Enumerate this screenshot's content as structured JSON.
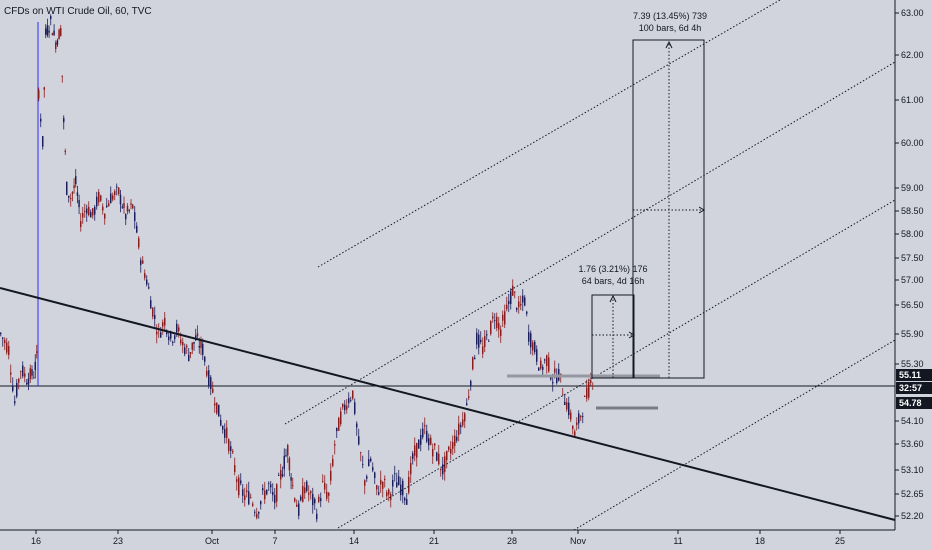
{
  "chart_data": {
    "type": "candlestick",
    "title": "CFDs on WTI Crude Oil, 60, TVC",
    "y_ticks": [
      63.0,
      62.0,
      61.0,
      60.0,
      59.0,
      58.5,
      58.0,
      57.5,
      57.0,
      56.5,
      55.9,
      55.3,
      54.1,
      53.6,
      53.1,
      52.65,
      52.2
    ],
    "y_tick_labels": [
      "63.00",
      "62.00",
      "61.00",
      "60.00",
      "59.00",
      "58.50",
      "58.00",
      "57.50",
      "57.00",
      "56.50",
      "55.90",
      "55.30",
      "54.10",
      "53.60",
      "53.10",
      "52.65",
      "52.20"
    ],
    "x_ticks": [
      "16",
      "23",
      "Oct",
      "7",
      "14",
      "21",
      "28",
      "Nov",
      "11",
      "18",
      "25"
    ],
    "price_labels": [
      {
        "text": "55.11",
        "value": 55.11,
        "color": "#131722"
      },
      {
        "text": "32:57",
        "value": 54.9,
        "color": "#131722"
      },
      {
        "text": "54.78",
        "value": 54.78,
        "color": "#131722"
      }
    ],
    "measure_annotations": [
      {
        "line1": "7.39 (13.45%) 739",
        "line2": "100 bars, 6d 4h"
      },
      {
        "line1": "1.76 (3.21%) 176",
        "line2": "64 bars, 4d 16h"
      }
    ],
    "price_path": [
      [
        0,
        55.9
      ],
      [
        8,
        55.6
      ],
      [
        14,
        54.5
      ],
      [
        20,
        55.2
      ],
      [
        26,
        55.0
      ],
      [
        33,
        55.1
      ],
      [
        36,
        55.4
      ],
      [
        38,
        61.2
      ],
      [
        42,
        60.0
      ],
      [
        45,
        62.5
      ],
      [
        50,
        62.8
      ],
      [
        55,
        62.3
      ],
      [
        60,
        62.6
      ],
      [
        63,
        60.5
      ],
      [
        66,
        59.0
      ],
      [
        70,
        58.8
      ],
      [
        75,
        59.1
      ],
      [
        80,
        58.3
      ],
      [
        86,
        58.6
      ],
      [
        92,
        58.4
      ],
      [
        98,
        58.8
      ],
      [
        104,
        58.5
      ],
      [
        110,
        58.8
      ],
      [
        118,
        58.9
      ],
      [
        125,
        58.4
      ],
      [
        132,
        58.6
      ],
      [
        140,
        57.5
      ],
      [
        146,
        57.0
      ],
      [
        152,
        56.4
      ],
      [
        158,
        55.9
      ],
      [
        164,
        56.2
      ],
      [
        170,
        55.8
      ],
      [
        176,
        56.0
      ],
      [
        182,
        55.7
      ],
      [
        188,
        55.5
      ],
      [
        195,
        55.8
      ],
      [
        202,
        55.6
      ],
      [
        208,
        55.0
      ],
      [
        214,
        54.6
      ],
      [
        220,
        54.1
      ],
      [
        226,
        53.8
      ],
      [
        232,
        53.3
      ],
      [
        238,
        52.8
      ],
      [
        244,
        52.6
      ],
      [
        250,
        52.6
      ],
      [
        256,
        52.3
      ],
      [
        262,
        52.6
      ],
      [
        268,
        52.8
      ],
      [
        274,
        52.5
      ],
      [
        280,
        53.0
      ],
      [
        287,
        53.5
      ],
      [
        292,
        52.8
      ],
      [
        298,
        52.3
      ],
      [
        304,
        52.8
      ],
      [
        310,
        52.6
      ],
      [
        316,
        52.3
      ],
      [
        322,
        52.8
      ],
      [
        328,
        52.6
      ],
      [
        334,
        53.6
      ],
      [
        340,
        54.2
      ],
      [
        346,
        54.5
      ],
      [
        352,
        54.7
      ],
      [
        358,
        53.6
      ],
      [
        364,
        52.9
      ],
      [
        370,
        53.3
      ],
      [
        376,
        52.7
      ],
      [
        382,
        52.9
      ],
      [
        388,
        52.6
      ],
      [
        394,
        52.9
      ],
      [
        400,
        52.8
      ],
      [
        406,
        52.6
      ],
      [
        412,
        53.3
      ],
      [
        418,
        53.6
      ],
      [
        424,
        53.9
      ],
      [
        430,
        53.6
      ],
      [
        436,
        53.4
      ],
      [
        442,
        53.1
      ],
      [
        448,
        53.4
      ],
      [
        454,
        53.7
      ],
      [
        460,
        54.0
      ],
      [
        466,
        54.4
      ],
      [
        470,
        55.0
      ],
      [
        476,
        55.8
      ],
      [
        482,
        55.6
      ],
      [
        488,
        55.9
      ],
      [
        494,
        56.3
      ],
      [
        500,
        56.0
      ],
      [
        506,
        56.4
      ],
      [
        512,
        56.8
      ],
      [
        518,
        56.4
      ],
      [
        524,
        56.6
      ],
      [
        528,
        55.9
      ],
      [
        534,
        55.6
      ],
      [
        540,
        55.2
      ],
      [
        546,
        55.4
      ],
      [
        552,
        55.0
      ],
      [
        558,
        55.1
      ],
      [
        564,
        54.6
      ],
      [
        570,
        54.2
      ],
      [
        574,
        53.8
      ],
      [
        578,
        54.1
      ],
      [
        584,
        54.5
      ],
      [
        590,
        54.9
      ],
      [
        594,
        55.1
      ]
    ]
  }
}
